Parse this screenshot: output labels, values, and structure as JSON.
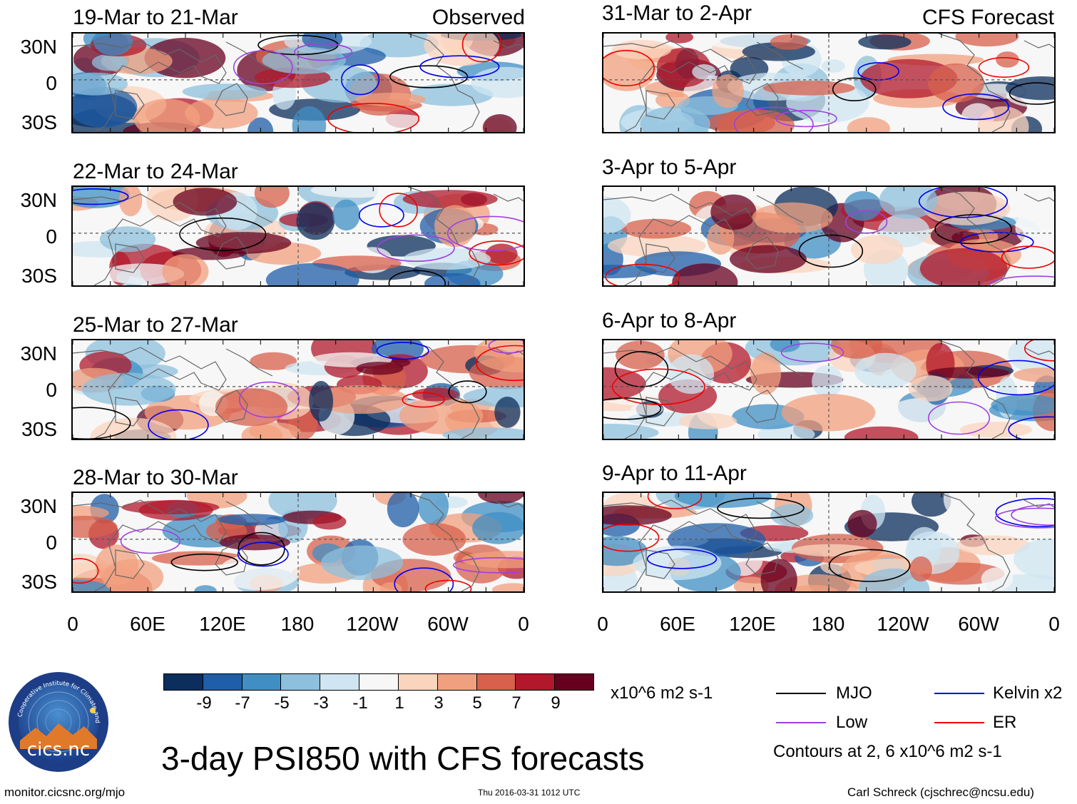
{
  "observed_tag": "Observed",
  "forecast_tag": "CFS Forecast",
  "panels": [
    {
      "title": "19-Mar to 21-Mar",
      "source": "observed"
    },
    {
      "title": "22-Mar to 24-Mar",
      "source": "observed"
    },
    {
      "title": "25-Mar to 27-Mar",
      "source": "observed"
    },
    {
      "title": "28-Mar to 30-Mar",
      "source": "observed"
    },
    {
      "title": "31-Mar to 2-Apr",
      "source": "forecast"
    },
    {
      "title": "3-Apr to 5-Apr",
      "source": "forecast"
    },
    {
      "title": "6-Apr to 8-Apr",
      "source": "forecast"
    },
    {
      "title": "9-Apr to 11-Apr",
      "source": "forecast"
    }
  ],
  "lat_labels": [
    "30N",
    "0",
    "30S"
  ],
  "lon_labels": [
    "0",
    "60E",
    "120E",
    "180",
    "120W",
    "60W",
    "0"
  ],
  "colorbar": {
    "colors": [
      "#0b2e5c",
      "#1f5ea8",
      "#3f8fc4",
      "#8dc0dd",
      "#cfe5f1",
      "#f7f7f7",
      "#fbd4bd",
      "#f1a07f",
      "#d8604c",
      "#b2182b",
      "#67001f"
    ],
    "tick_labels": [
      "-9",
      "-7",
      "-5",
      "-3",
      "-1",
      "1",
      "3",
      "5",
      "7",
      "9"
    ],
    "units": "x10^6 m2 s-1"
  },
  "legend": {
    "items": [
      {
        "label": "MJO",
        "color": "#000000"
      },
      {
        "label": "Kelvin x2",
        "color": "#0000ee"
      },
      {
        "label": "Low",
        "color": "#a040e0"
      },
      {
        "label": "ER",
        "color": "#ee0000"
      }
    ],
    "note": "Contours at 2, 6 x10^6 m2 s-1"
  },
  "logo_text": "cics.nc",
  "logo_ring_text": "Cooperative Institute for Climate and Satellites",
  "main_title": "3-day PSI850 with CFS forecasts",
  "footer": {
    "left": "monitor.cicsnc.org/mjo",
    "center": "Thu 2016-03-31 1012 UTC",
    "right": "Carl Schreck (cjschrec@ncsu.edu)"
  }
}
